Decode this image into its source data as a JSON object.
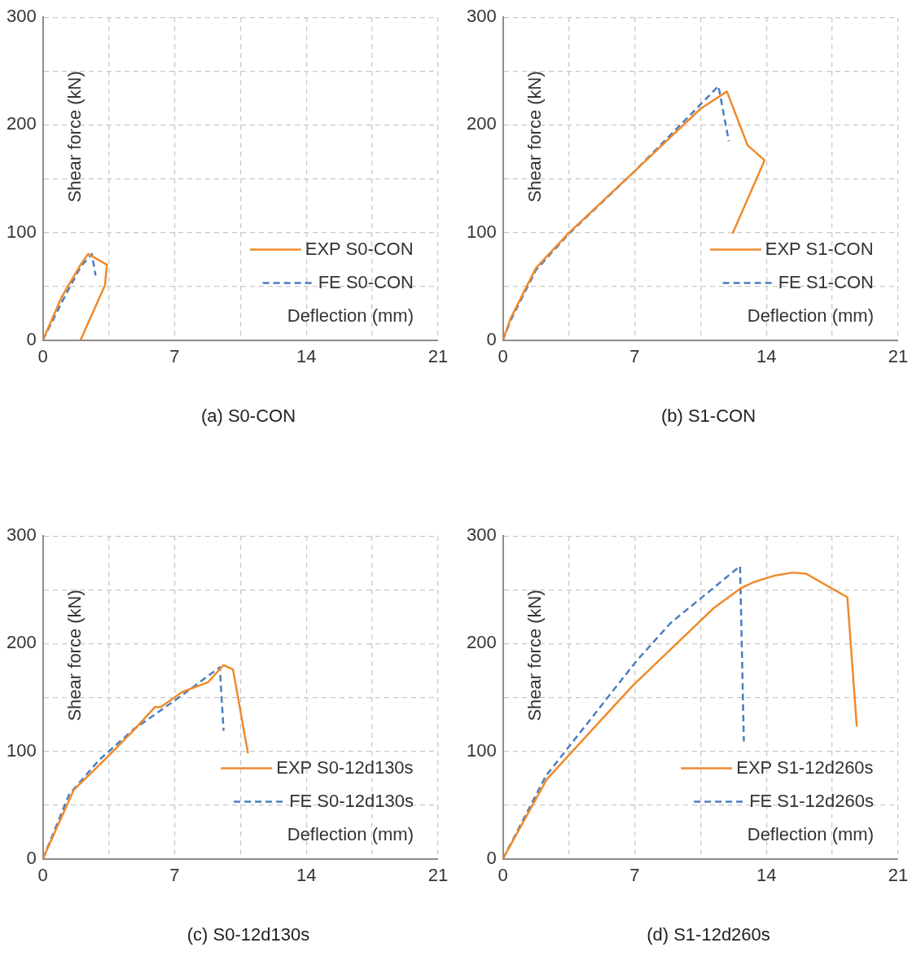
{
  "chart_data": [
    {
      "type": "line",
      "title": "(a) S0-CON",
      "xlabel": "Deflection (mm)",
      "ylabel": "Shear force (kN)",
      "xlim": [
        0,
        21
      ],
      "ylim": [
        0,
        300
      ],
      "xticks": [
        0,
        {
          "value": 3.5,
          "label": null
        },
        7,
        {
          "value": 10.5,
          "label": null
        },
        14,
        {
          "value": 17.5,
          "label": null
        },
        21
      ],
      "yticks": [
        0,
        {
          "value": 50,
          "label": null
        },
        100,
        {
          "value": 150,
          "label": null
        },
        200,
        {
          "value": 250,
          "label": null
        },
        300
      ],
      "grid": true,
      "legend": "bottom right",
      "marker": "none",
      "series": [
        {
          "name": "EXP S0-CON",
          "color": "#f08a2c",
          "line_style": "solid",
          "x": [
            0,
            1,
            2,
            2.4,
            3.4,
            3.3,
            2
          ],
          "values": [
            0,
            40,
            70,
            80,
            70,
            51,
            0
          ]
        },
        {
          "name": "FE S0-CON",
          "color": "#4a7ebf",
          "line_style": "dashed",
          "x": [
            0,
            1,
            2,
            2.6,
            2.8
          ],
          "values": [
            0,
            35,
            68,
            80,
            60
          ]
        }
      ]
    },
    {
      "type": "line",
      "title": "(b) S1-CON",
      "xlabel": "Deflection (mm)",
      "ylabel": "Shear force (kN)",
      "xlim": [
        0,
        21
      ],
      "ylim": [
        0,
        300
      ],
      "xticks": [
        0,
        {
          "value": 3.5,
          "label": null
        },
        7,
        {
          "value": 10.5,
          "label": null
        },
        14,
        {
          "value": 17.5,
          "label": null
        },
        21
      ],
      "yticks": [
        0,
        {
          "value": 50,
          "label": null
        },
        100,
        {
          "value": 150,
          "label": null
        },
        200,
        {
          "value": 250,
          "label": null
        },
        300
      ],
      "grid": true,
      "legend": "bottom right",
      "marker": "none",
      "series": [
        {
          "name": "EXP S1-CON",
          "color": "#f08a2c",
          "line_style": "solid",
          "x": [
            0,
            0.4,
            1.75,
            3.46,
            7,
            10.5,
            11.9,
            13,
            13.9,
            12.2
          ],
          "values": [
            0,
            20,
            67,
            99,
            157,
            215,
            231,
            181,
            167,
            99
          ]
        },
        {
          "name": "FE S1-CON",
          "color": "#4a7ebf",
          "line_style": "dashed",
          "x": [
            0,
            0.4,
            1.75,
            3.46,
            7,
            10.5,
            11.45,
            12
          ],
          "values": [
            0,
            18,
            65,
            98,
            157,
            219,
            236,
            185
          ]
        }
      ]
    },
    {
      "type": "line",
      "title": "(c) S0-12d130s",
      "xlabel": "Deflection (mm)",
      "ylabel": "Shear force (kN)",
      "xlim": [
        0,
        21
      ],
      "ylim": [
        0,
        300
      ],
      "xticks": [
        0,
        {
          "value": 3.5,
          "label": null
        },
        7,
        {
          "value": 10.5,
          "label": null
        },
        14,
        {
          "value": 17.5,
          "label": null
        },
        21
      ],
      "yticks": [
        0,
        {
          "value": 50,
          "label": null
        },
        100,
        {
          "value": 150,
          "label": null
        },
        200,
        {
          "value": 250,
          "label": null
        },
        300
      ],
      "grid": true,
      "legend": "bottom right",
      "marker": "none",
      "series": [
        {
          "name": "EXP S0-12d130s",
          "color": "#f08a2c",
          "line_style": "solid",
          "x": [
            0,
            1.64,
            3.45,
            4.8,
            5.95,
            6.27,
            7.4,
            8.77,
            9.6,
            10.1,
            10.9
          ],
          "values": [
            0,
            64,
            95,
            119,
            141,
            141,
            155,
            164,
            180,
            176,
            98
          ]
        },
        {
          "name": "FE S0-12d130s",
          "color": "#4a7ebf",
          "line_style": "dashed",
          "x": [
            0,
            1.4,
            3,
            4.8,
            7,
            9.4,
            9.6
          ],
          "values": [
            0,
            60,
            92,
            120,
            147,
            178,
            119
          ]
        }
      ]
    },
    {
      "type": "line",
      "title": "(d) S1-12d260s",
      "xlabel": "Deflection (mm)",
      "ylabel": "Shear force (kN)",
      "xlim": [
        0,
        21
      ],
      "ylim": [
        0,
        300
      ],
      "xticks": [
        0,
        {
          "value": 3.5,
          "label": null
        },
        7,
        {
          "value": 10.5,
          "label": null
        },
        14,
        {
          "value": 17.5,
          "label": null
        },
        21
      ],
      "yticks": [
        0,
        {
          "value": 50,
          "label": null
        },
        100,
        {
          "value": 150,
          "label": null
        },
        200,
        {
          "value": 250,
          "label": null
        },
        300
      ],
      "grid": true,
      "legend": "bottom right",
      "marker": "none",
      "series": [
        {
          "name": "EXP S1-12d260s",
          "color": "#f08a2c",
          "line_style": "solid",
          "x": [
            0,
            2.33,
            6.9,
            11.2,
            12.6,
            13.3,
            14.4,
            15.4,
            16.1,
            18.3,
            18.8
          ],
          "values": [
            0,
            74,
            161,
            233,
            251,
            257,
            263,
            266,
            265,
            243,
            123
          ]
        },
        {
          "name": "FE S1-12d260s",
          "color": "#4a7ebf",
          "line_style": "dashed",
          "x": [
            0,
            2.28,
            7.1,
            8.9,
            12.6,
            12.8
          ],
          "values": [
            0,
            77,
            184,
            219,
            272,
            109
          ]
        }
      ]
    }
  ]
}
